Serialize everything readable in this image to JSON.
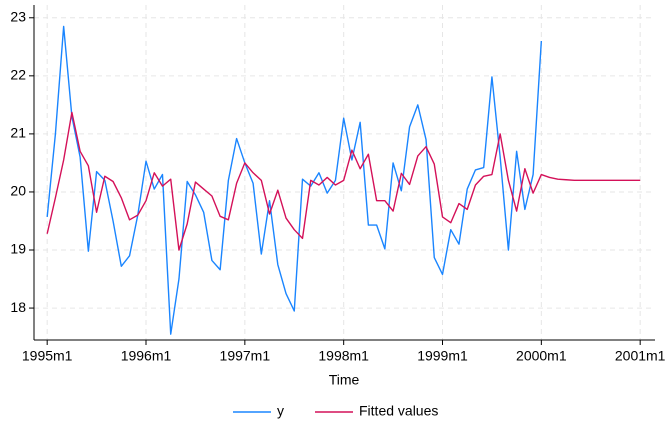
{
  "chart_data": {
    "type": "line",
    "xlabel": "Time",
    "x": [
      420,
      421,
      422,
      423,
      424,
      425,
      426,
      427,
      428,
      429,
      430,
      431,
      432,
      433,
      434,
      435,
      436,
      437,
      438,
      439,
      440,
      441,
      442,
      443,
      444,
      445,
      446,
      447,
      448,
      449,
      450,
      451,
      452,
      453,
      454,
      455,
      456,
      457,
      458,
      459,
      460,
      461,
      462,
      463,
      464,
      465,
      466,
      467,
      468,
      469,
      470,
      471,
      472,
      473,
      474,
      475,
      476,
      477,
      478,
      479,
      480,
      481,
      482,
      483,
      484,
      485,
      486,
      487,
      488,
      489,
      490,
      491,
      492
    ],
    "series": [
      {
        "name": "y",
        "color": "#1a85ff",
        "values": [
          19.57,
          21.0,
          22.85,
          21.3,
          20.6,
          18.98,
          20.35,
          20.2,
          19.5,
          18.72,
          18.9,
          19.6,
          20.53,
          20.05,
          20.3,
          17.55,
          18.5,
          20.18,
          19.95,
          19.65,
          18.82,
          18.66,
          20.2,
          20.92,
          20.5,
          20.15,
          18.93,
          19.85,
          18.75,
          18.25,
          17.95,
          20.22,
          20.1,
          20.33,
          19.98,
          20.2,
          21.27,
          20.55,
          21.2,
          19.43,
          19.43,
          19.02,
          20.5,
          20.02,
          21.12,
          21.5,
          20.9,
          18.87,
          18.58,
          19.35,
          19.1,
          20.05,
          20.38,
          20.42,
          21.98,
          20.6,
          19.0,
          20.7,
          19.7,
          20.3,
          22.6,
          null,
          null,
          null,
          null,
          null,
          null,
          null,
          null,
          null,
          null,
          null,
          null
        ]
      },
      {
        "name": "Fitted values",
        "color": "#d41159",
        "values": [
          19.28,
          19.9,
          20.55,
          21.37,
          20.7,
          20.45,
          19.65,
          20.27,
          20.18,
          19.9,
          19.52,
          19.6,
          19.85,
          20.33,
          20.1,
          20.22,
          19.0,
          19.45,
          20.17,
          20.05,
          19.93,
          19.58,
          19.52,
          20.15,
          20.5,
          20.33,
          20.2,
          19.62,
          20.03,
          19.55,
          19.35,
          19.2,
          20.2,
          20.12,
          20.25,
          20.12,
          20.2,
          20.72,
          20.4,
          20.65,
          19.85,
          19.85,
          19.67,
          20.32,
          20.13,
          20.62,
          20.78,
          20.48,
          19.57,
          19.47,
          19.8,
          19.7,
          20.12,
          20.27,
          20.3,
          21.0,
          20.2,
          19.67,
          20.4,
          19.98,
          20.3,
          20.25,
          20.22,
          20.21,
          20.2,
          20.2,
          20.2,
          20.2,
          20.2,
          20.2,
          20.2,
          20.2,
          20.2
        ]
      }
    ],
    "xlim": [
      418.4,
      493.8
    ],
    "ylim": [
      17.45,
      23.22
    ],
    "xticks": [
      {
        "value": 420,
        "label": "1995m1"
      },
      {
        "value": 432,
        "label": "1996m1"
      },
      {
        "value": 444,
        "label": "1997m1"
      },
      {
        "value": 456,
        "label": "1998m1"
      },
      {
        "value": 468,
        "label": "1999m1"
      },
      {
        "value": 480,
        "label": "2000m1"
      },
      {
        "value": 492,
        "label": "2001m1"
      }
    ],
    "yticks": [
      18,
      19,
      20,
      21,
      22,
      23
    ],
    "grid": true,
    "legend": "bottom"
  }
}
